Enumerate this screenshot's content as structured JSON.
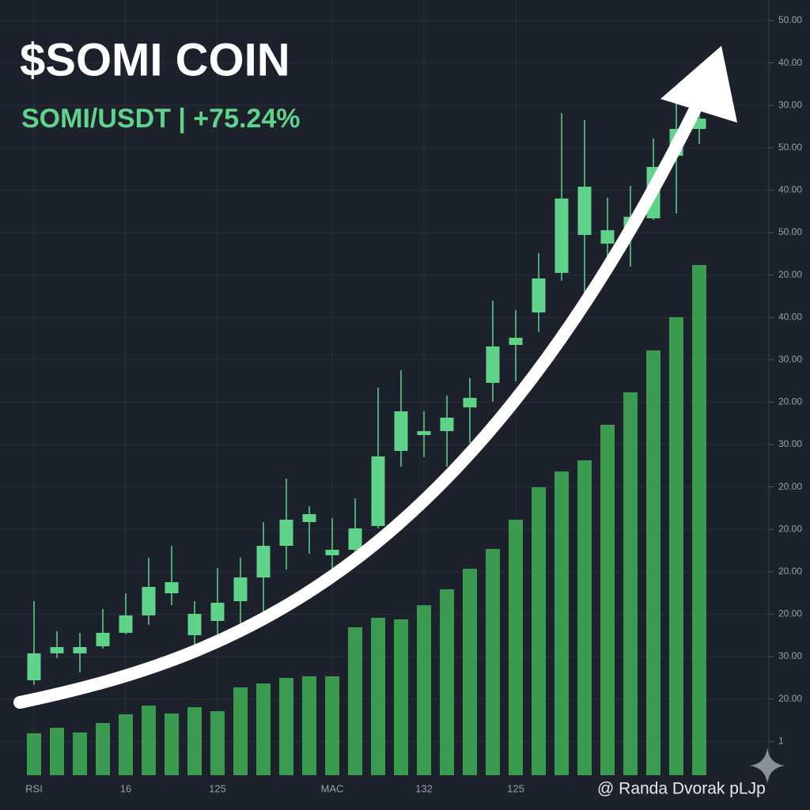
{
  "chart_data": {
    "type": "candlestick",
    "title": "$SOMI COIN",
    "subtitle": "SOMI/USDT | +75.24%",
    "ylim": [
      0,
      95
    ],
    "y_axis_labels": [
      "50.00",
      "40.00",
      "30.00",
      "50.00",
      "40.00",
      "50.00",
      "20.00",
      "40.00",
      "30.00",
      "20.00",
      "30.00",
      "20.00",
      "20.00",
      "20.00",
      "20.00",
      "30.00",
      "20.00",
      "1"
    ],
    "x_axis_labels": [
      {
        "text": "RSI",
        "index": 0
      },
      {
        "text": "16",
        "index": 4
      },
      {
        "text": "125",
        "index": 8
      },
      {
        "text": "MAC",
        "index": 13
      },
      {
        "text": "132",
        "index": 17
      },
      {
        "text": "125",
        "index": 21
      }
    ],
    "candle_color": "#5fd38a",
    "open": [
      12.0,
      15.4,
      15.4,
      16.3,
      18.0,
      20.2,
      23.0,
      17.7,
      19.5,
      22.0,
      25.0,
      29.0,
      32.0,
      27.8,
      28.5,
      31.5,
      41.0,
      43.0,
      43.5,
      46.5,
      49.6,
      54.4,
      58.5,
      63.5,
      68.3,
      67.2,
      68.8,
      70.4,
      78.3,
      81.7
    ],
    "high": [
      22.0,
      18.2,
      18.0,
      21.0,
      23.0,
      27.5,
      29.0,
      22.0,
      26.2,
      27.5,
      32.0,
      37.5,
      34.0,
      32.5,
      35.0,
      49.0,
      51.2,
      46.0,
      48.0,
      50.2,
      60.0,
      58.8,
      66.0,
      83.7,
      82.8,
      73.0,
      74.5,
      80.5,
      86.0,
      84.0
    ],
    "low": [
      11.4,
      14.8,
      13.0,
      16.0,
      17.8,
      19.0,
      21.5,
      15.4,
      17.4,
      19.0,
      20.0,
      26.0,
      28.0,
      25.0,
      27.0,
      31.2,
      39.0,
      40.2,
      39.0,
      42.0,
      47.2,
      49.8,
      56.0,
      62.5,
      59.2,
      62.8,
      64.3,
      70.2,
      71.0,
      79.8
    ],
    "close": [
      15.4,
      16.2,
      16.2,
      18.0,
      20.2,
      23.8,
      24.4,
      20.4,
      21.8,
      25.0,
      29.0,
      32.3,
      33.0,
      28.5,
      31.2,
      40.3,
      46.0,
      43.5,
      45.2,
      47.7,
      54.2,
      55.3,
      62.8,
      72.9,
      74.4,
      68.9,
      70.6,
      76.9,
      81.7,
      83.0
    ],
    "volume_color": "#3a9a50",
    "volume": [
      5.3,
      6.0,
      5.4,
      6.6,
      7.7,
      8.8,
      7.8,
      8.6,
      8.1,
      11.1,
      11.6,
      12.3,
      12.5,
      12.5,
      18.7,
      19.9,
      19.7,
      21.5,
      23.5,
      26.1,
      28.6,
      32.3,
      36.4,
      38.4,
      39.8,
      44.3,
      48.4,
      53.7,
      57.9,
      64.5
    ],
    "watermark": "@ Randa Dvorak pLJp"
  }
}
